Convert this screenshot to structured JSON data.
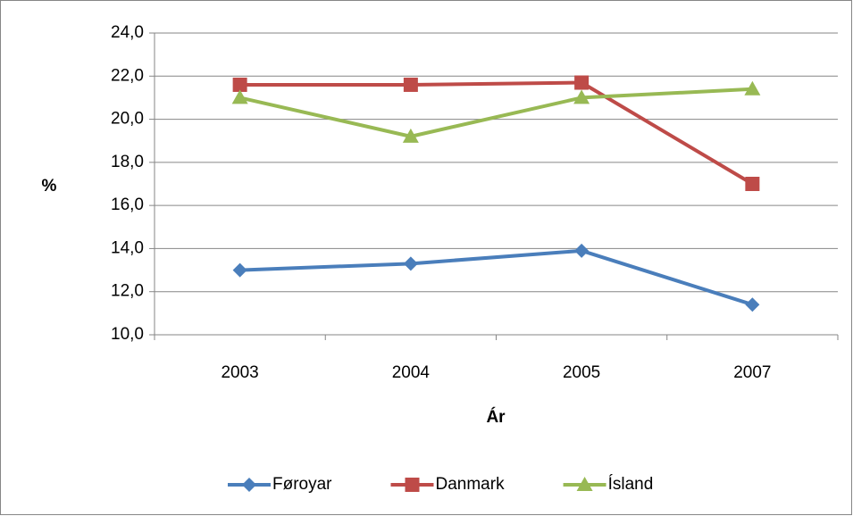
{
  "chart_data": {
    "type": "line",
    "categories": [
      "2003",
      "2004",
      "2005",
      "2007"
    ],
    "series": [
      {
        "name": "Føroyar",
        "color": "#4a7ebb",
        "marker": "diamond",
        "values": [
          13.0,
          13.3,
          13.9,
          11.4
        ]
      },
      {
        "name": "Danmark",
        "color": "#be4b48",
        "marker": "square",
        "values": [
          21.6,
          21.6,
          21.7,
          17.0
        ]
      },
      {
        "name": "Ísland",
        "color": "#98b954",
        "marker": "triangle",
        "values": [
          21.0,
          19.2,
          21.0,
          21.4
        ]
      }
    ],
    "x_label": "Ár",
    "y_label": "%",
    "ylim": [
      10,
      24
    ],
    "yticks": [
      {
        "value": 10,
        "label": "10,0"
      },
      {
        "value": 12,
        "label": "12,0"
      },
      {
        "value": 14,
        "label": "14,0"
      },
      {
        "value": 16,
        "label": "16,0"
      },
      {
        "value": 18,
        "label": "18,0"
      },
      {
        "value": 20,
        "label": "20,0"
      },
      {
        "value": 22,
        "label": "22,0"
      },
      {
        "value": 24,
        "label": "24,0"
      }
    ],
    "grid": true,
    "legend": "bottom"
  }
}
